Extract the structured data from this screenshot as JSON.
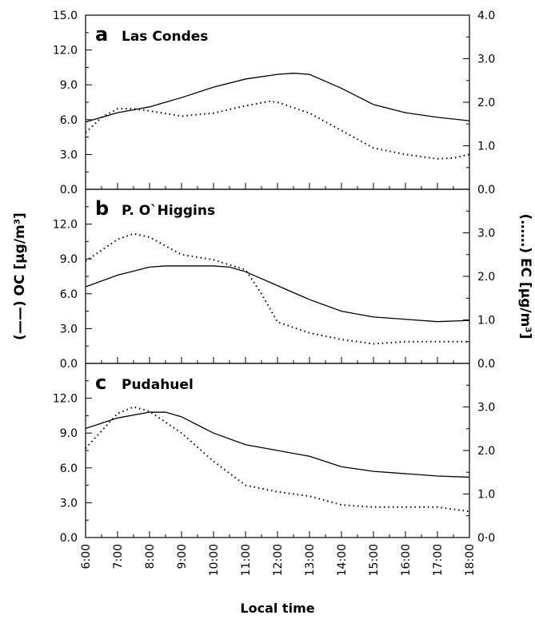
{
  "chart_data": [
    {
      "type": "line",
      "panel_label": "a",
      "title": "Las Condes",
      "xlim": [
        6,
        18
      ],
      "ylim": [
        0,
        15
      ],
      "yticks": [
        {
          "value": 0,
          "label": "0.0"
        },
        {
          "value": 3,
          "label": "3.0"
        },
        {
          "value": 6,
          "label": "6.0"
        },
        {
          "value": 9,
          "label": "9.0"
        },
        {
          "value": 12,
          "label": "12.0"
        },
        {
          "value": 15,
          "label": "15.0"
        }
      ],
      "y2lim": [
        0,
        4
      ],
      "y2ticks": [
        {
          "value": 0,
          "label": "0.0"
        },
        {
          "value": 1,
          "label": "1.0"
        },
        {
          "value": 2,
          "label": "2.0"
        },
        {
          "value": 3,
          "label": "3.0"
        },
        {
          "value": 4,
          "label": "4.0"
        }
      ],
      "series": [
        {
          "color": "#000000",
          "style": "solid",
          "x": [
            6,
            7,
            8,
            9,
            10,
            11,
            12,
            12.5,
            13,
            14,
            15,
            16,
            17,
            18
          ],
          "values": [
            5.8,
            6.6,
            7.1,
            7.9,
            8.8,
            9.5,
            9.9,
            10,
            9.9,
            8.7,
            7.3,
            6.6,
            6.2,
            5.9
          ]
        },
        {
          "color": "#000000",
          "style": "dotted",
          "axis": "y2",
          "x": [
            6,
            6.5,
            7,
            7.5,
            8,
            9,
            10,
            11,
            11.75,
            12,
            13,
            14,
            15,
            16,
            17,
            17.5,
            18
          ],
          "values": [
            1.3,
            1.65,
            1.85,
            1.85,
            1.8,
            1.68,
            1.75,
            1.92,
            2.02,
            2,
            1.75,
            1.35,
            0.95,
            0.8,
            0.7,
            0.72,
            0.8
          ]
        }
      ]
    },
    {
      "type": "line",
      "panel_label": "b",
      "title": "P. O`Higgins",
      "ylabel": "(——) OC  [µg/m³]",
      "y2label": "(……) EC  [µg/m³]",
      "xlim": [
        6,
        18
      ],
      "ylim": [
        0,
        15
      ],
      "yticks": [
        {
          "value": 0,
          "label": "0.0"
        },
        {
          "value": 3,
          "label": "3.0"
        },
        {
          "value": 6,
          "label": "6.0"
        },
        {
          "value": 9,
          "label": "9.0"
        },
        {
          "value": 12,
          "label": "12.0"
        }
      ],
      "y2lim": [
        0,
        4
      ],
      "y2ticks": [
        {
          "value": 0,
          "label": "0.0"
        },
        {
          "value": 1,
          "label": "1.0"
        },
        {
          "value": 2,
          "label": "2.0"
        },
        {
          "value": 3,
          "label": "3.0"
        }
      ],
      "series": [
        {
          "color": "#000000",
          "style": "solid",
          "x": [
            6,
            7,
            8,
            8.5,
            9,
            10,
            10.5,
            11,
            12,
            13,
            14,
            15,
            16,
            17,
            18
          ],
          "values": [
            6.6,
            7.6,
            8.3,
            8.4,
            8.4,
            8.4,
            8.3,
            7.9,
            6.7,
            5.5,
            4.5,
            4,
            3.8,
            3.6,
            3.7
          ]
        },
        {
          "color": "#000000",
          "style": "dotted",
          "axis": "y2",
          "x": [
            6,
            7,
            7.5,
            8,
            9,
            10,
            11,
            11.5,
            12,
            13,
            14,
            15,
            16,
            17,
            18
          ],
          "values": [
            2.35,
            2.85,
            2.98,
            2.9,
            2.5,
            2.38,
            2.15,
            1.6,
            0.95,
            0.7,
            0.55,
            0.45,
            0.5,
            0.5,
            0.5
          ]
        }
      ]
    },
    {
      "type": "line",
      "panel_label": "c",
      "title": "Pudahuel",
      "xlabel": "Local time",
      "xlim": [
        6,
        18
      ],
      "xticks": [
        {
          "value": 6,
          "label": "6:00"
        },
        {
          "value": 7,
          "label": "7:00"
        },
        {
          "value": 8,
          "label": "8:00"
        },
        {
          "value": 9,
          "label": "9:00"
        },
        {
          "value": 10,
          "label": "10:00"
        },
        {
          "value": 11,
          "label": "11:00"
        },
        {
          "value": 12,
          "label": "12:00"
        },
        {
          "value": 13,
          "label": "13:00"
        },
        {
          "value": 14,
          "label": "14:00"
        },
        {
          "value": 15,
          "label": "15:00"
        },
        {
          "value": 16,
          "label": "16:00"
        },
        {
          "value": 17,
          "label": "17:00"
        },
        {
          "value": 18,
          "label": "18:00"
        }
      ],
      "ylim": [
        0,
        15
      ],
      "yticks": [
        {
          "value": 0,
          "label": "0.0"
        },
        {
          "value": 3,
          "label": "3.0"
        },
        {
          "value": 6,
          "label": "6.0"
        },
        {
          "value": 9,
          "label": "9.0"
        },
        {
          "value": 12,
          "label": "12.0"
        }
      ],
      "y2lim": [
        0,
        4
      ],
      "y2ticks": [
        {
          "value": 0,
          "label": "0·0"
        },
        {
          "value": 1,
          "label": "1.0"
        },
        {
          "value": 2,
          "label": "2.0"
        },
        {
          "value": 3,
          "label": "3.0"
        }
      ],
      "series": [
        {
          "color": "#000000",
          "style": "solid",
          "x": [
            6,
            7,
            8,
            8.5,
            9,
            10,
            11,
            12,
            13,
            14,
            15,
            16,
            17,
            18
          ],
          "values": [
            9.4,
            10.3,
            10.8,
            10.8,
            10.4,
            9,
            8,
            7.5,
            7,
            6.1,
            5.7,
            5.5,
            5.3,
            5.2
          ]
        },
        {
          "color": "#000000",
          "style": "dotted",
          "axis": "y2",
          "x": [
            6,
            7,
            7.5,
            8,
            9,
            10,
            11,
            12,
            13,
            14,
            15,
            16,
            17,
            18
          ],
          "values": [
            2.05,
            2.85,
            3,
            2.9,
            2.4,
            1.75,
            1.2,
            1.05,
            0.95,
            0.75,
            0.7,
            0.7,
            0.7,
            0.6
          ]
        }
      ]
    }
  ]
}
